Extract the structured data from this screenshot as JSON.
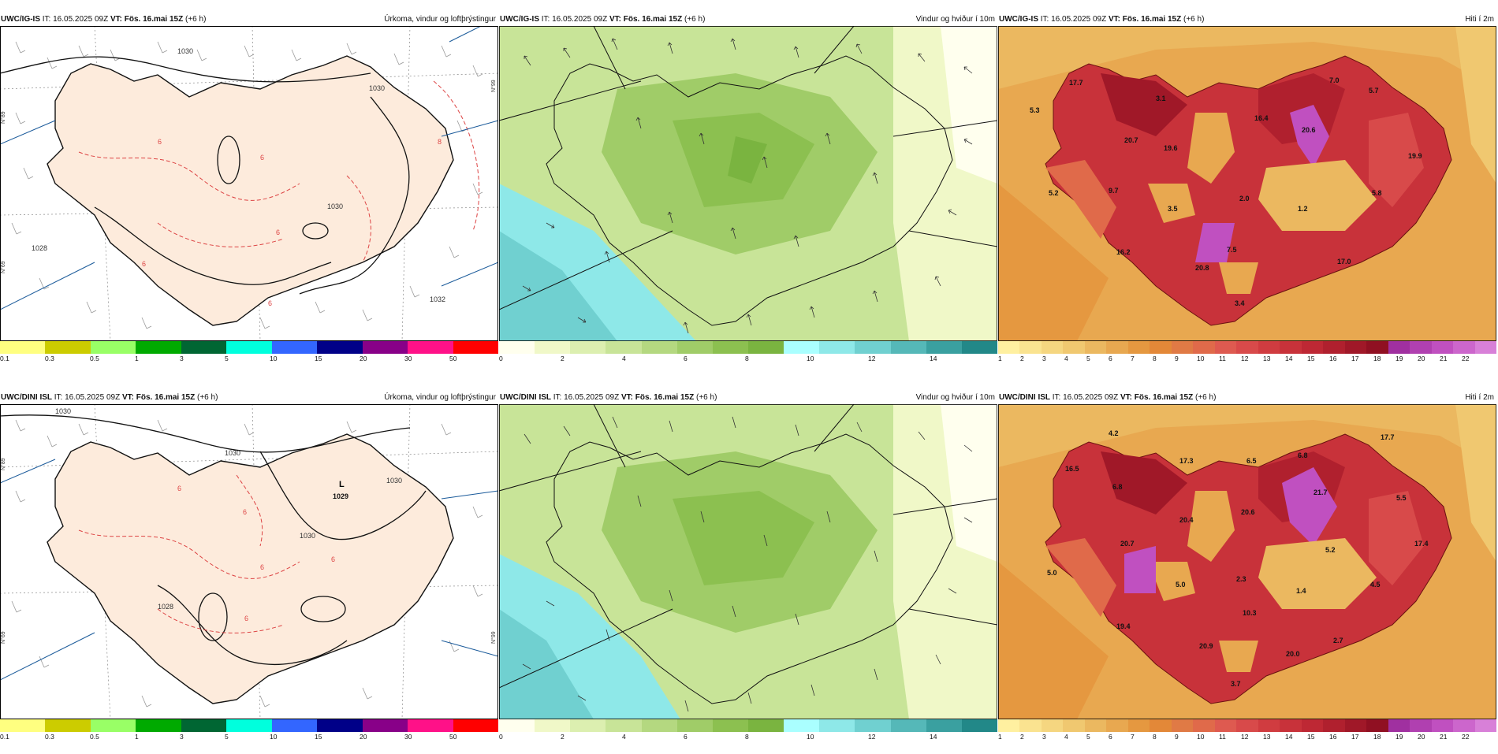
{
  "rows": [
    {
      "panels": [
        {
          "model": "UWC/IG-IS",
          "it_prefix": "IT:",
          "it_value": "16.05.2025 09Z",
          "vt_bold": "VT: Fös. 16.mai 15Z",
          "vt_suffix": "(+6 h)",
          "title": "Úrkoma, vindur og loftþrýstingur",
          "colors": [
            "#ffff80",
            "#cccc00",
            "#99ff66",
            "#00aa00",
            "#006633",
            "#00ffdd",
            "#3366ff",
            "#000088",
            "#880088",
            "#ff1188",
            "#ff0000"
          ],
          "ticks": [
            "0.1",
            "0.3",
            "0.5",
            "1",
            "3",
            "5",
            "10",
            "15",
            "20",
            "30",
            "50"
          ],
          "isobars": [
            "1030",
            "1028",
            "1030",
            "1032",
            "1030"
          ],
          "edge_labels": [
            "N°89",
            "N°69",
            "N°99"
          ],
          "temp_labels": [
            "6",
            "6",
            "6",
            "6",
            "6",
            "8"
          ],
          "pressure_center": {
            "mark": "",
            "value": ""
          }
        },
        {
          "model": "UWC/IG-IS",
          "it_prefix": "IT:",
          "it_value": "16.05.2025 09Z",
          "vt_bold": "VT: Fös. 16.mai 15Z",
          "vt_suffix": "(+6 h)",
          "title": "Vindur og hviður í 10m",
          "colors": [
            "#ffffee",
            "#f0f8c8",
            "#dcefb0",
            "#c8e498",
            "#b4d880",
            "#a0cc68",
            "#8cc050",
            "#7ab440",
            "#aaffff",
            "#8ee8e8",
            "#70d0d0",
            "#55b8b8",
            "#3aa0a0",
            "#228888"
          ],
          "ticks": [
            "0",
            "2",
            "4",
            "6",
            "8",
            "10",
            "12",
            "14"
          ]
        },
        {
          "model": "UWC/IG-IS",
          "it_prefix": "IT:",
          "it_value": "16.05.2025 09Z",
          "vt_bold": "VT: Fös. 16.mai 15Z",
          "vt_suffix": "(+6 h)",
          "title": "Hiti í 2m",
          "colors": [
            "#fff0a0",
            "#fae390",
            "#f5d680",
            "#f0c870",
            "#ebb860",
            "#e8a850",
            "#e59840",
            "#e38838",
            "#e07a45",
            "#e06a4a",
            "#de5a50",
            "#d84a4a",
            "#d03c40",
            "#c8323a",
            "#be2834",
            "#b0202e",
            "#a01828",
            "#901022",
            "#a030a0",
            "#b040b0",
            "#c050c0",
            "#cc66cc",
            "#d880d8"
          ],
          "ticks": [
            "1",
            "2",
            "3",
            "4",
            "5",
            "6",
            "7",
            "8",
            "9",
            "10",
            "11",
            "12",
            "13",
            "14",
            "15",
            "16",
            "17",
            "18",
            "19",
            "20",
            "21",
            "22"
          ],
          "values": [
            "17.7",
            "5.3",
            "3.1",
            "16.4",
            "7.0",
            "5.7",
            "20.7",
            "19.6",
            "20.6",
            "19.9",
            "5.2",
            "9.7",
            "3.5",
            "2.0",
            "1.2",
            "5.8",
            "16.2",
            "7.5",
            "17.0",
            "20.8",
            "3.4"
          ]
        }
      ]
    },
    {
      "panels": [
        {
          "model": "UWC/DINI ISL",
          "it_prefix": "IT:",
          "it_value": "16.05.2025 09Z",
          "vt_bold": "VT: Fös. 16.mai 15Z",
          "vt_suffix": "(+6 h)",
          "title": "Úrkoma, vindur og loftþrýstingur",
          "colors": [
            "#ffff80",
            "#cccc00",
            "#99ff66",
            "#00aa00",
            "#006633",
            "#00ffdd",
            "#3366ff",
            "#000088",
            "#880088",
            "#ff1188",
            "#ff0000"
          ],
          "ticks": [
            "0.1",
            "0.3",
            "0.5",
            "1",
            "3",
            "5",
            "10",
            "15",
            "20",
            "30",
            "50"
          ],
          "isobars": [
            "1030",
            "1030",
            "1030",
            "1030",
            "1028"
          ],
          "edge_labels": [
            "N°89",
            "N°69",
            "N°99"
          ],
          "temp_labels": [
            "6",
            "6",
            "6",
            "6",
            "6"
          ],
          "pressure_center": {
            "mark": "L",
            "value": "1029"
          }
        },
        {
          "model": "UWC/DINI ISL",
          "it_prefix": "IT:",
          "it_value": "16.05.2025 09Z",
          "vt_bold": "VT: Fös. 16.mai 15Z",
          "vt_suffix": "(+6 h)",
          "title": "Vindur og hviður í 10m",
          "colors": [
            "#ffffee",
            "#f0f8c8",
            "#dcefb0",
            "#c8e498",
            "#b4d880",
            "#a0cc68",
            "#8cc050",
            "#7ab440",
            "#aaffff",
            "#8ee8e8",
            "#70d0d0",
            "#55b8b8",
            "#3aa0a0",
            "#228888"
          ],
          "ticks": [
            "0",
            "2",
            "4",
            "6",
            "8",
            "10",
            "12",
            "14"
          ]
        },
        {
          "model": "UWC/DINI ISL",
          "it_prefix": "IT:",
          "it_value": "16.05.2025 09Z",
          "vt_bold": "VT: Fös. 16.mai 15Z",
          "vt_suffix": "(+6 h)",
          "title": "Hiti í 2m",
          "colors": [
            "#fff0a0",
            "#fae390",
            "#f5d680",
            "#f0c870",
            "#ebb860",
            "#e8a850",
            "#e59840",
            "#e38838",
            "#e07a45",
            "#e06a4a",
            "#de5a50",
            "#d84a4a",
            "#d03c40",
            "#c8323a",
            "#be2834",
            "#b0202e",
            "#a01828",
            "#901022",
            "#a030a0",
            "#b040b0",
            "#c050c0",
            "#cc66cc",
            "#d880d8"
          ],
          "ticks": [
            "1",
            "2",
            "3",
            "4",
            "5",
            "6",
            "7",
            "8",
            "9",
            "10",
            "11",
            "12",
            "13",
            "14",
            "15",
            "16",
            "17",
            "18",
            "19",
            "20",
            "21",
            "22"
          ],
          "values": [
            "4.2",
            "16.5",
            "6.8",
            "17.3",
            "6.5",
            "6.8",
            "17.7",
            "20.4",
            "21.7",
            "5.5",
            "20.7",
            "20.6",
            "5.0",
            "5.0",
            "2.3",
            "5.2",
            "1.4",
            "4.5",
            "17.4",
            "10.3",
            "19.4",
            "20.9",
            "20.0",
            "2.7",
            "3.7"
          ]
        }
      ]
    }
  ]
}
